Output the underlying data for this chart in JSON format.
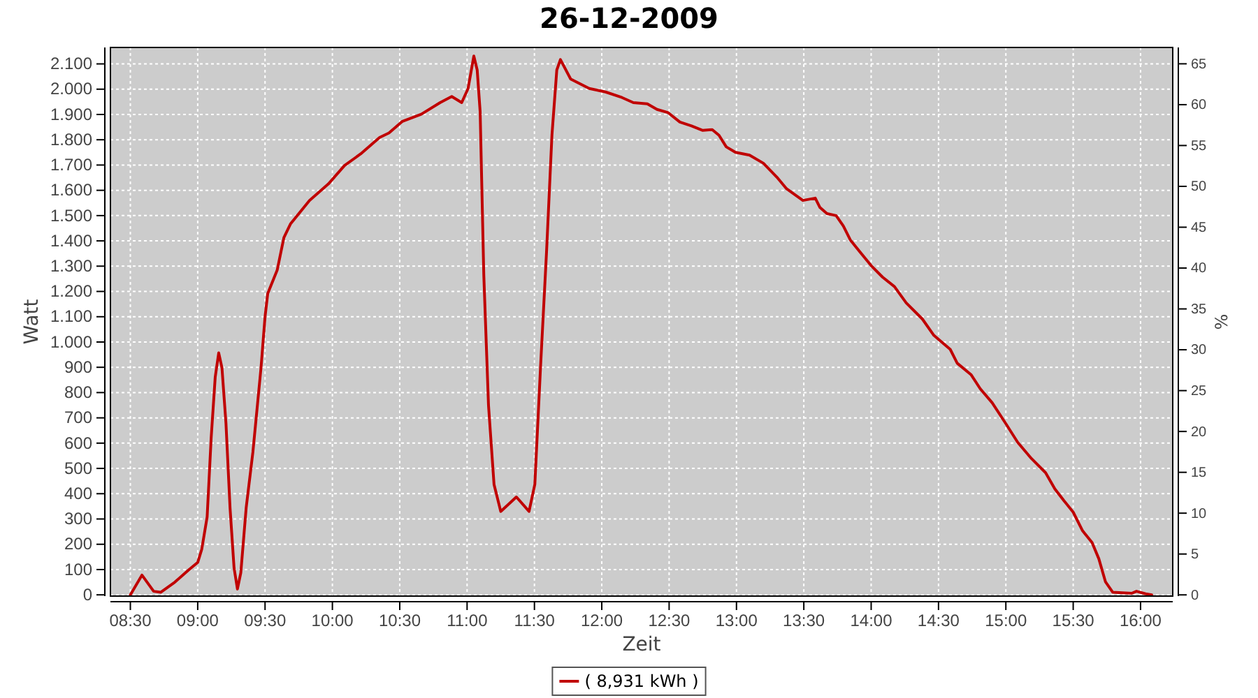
{
  "chart_data": {
    "type": "line",
    "title": "26-12-2009",
    "xlabel": "Zeit",
    "ylabel": "Watt",
    "y2label": "%",
    "xlim": [
      8.352,
      16.239
    ],
    "xticks": [
      {
        "value": 8.5,
        "label": "08:30"
      },
      {
        "value": 9,
        "label": "09:00"
      },
      {
        "value": 9.5,
        "label": "09:30"
      },
      {
        "value": 10,
        "label": "10:00"
      },
      {
        "value": 10.5,
        "label": "10:30"
      },
      {
        "value": 11,
        "label": "11:00"
      },
      {
        "value": 11.5,
        "label": "11:30"
      },
      {
        "value": 12,
        "label": "12:00"
      },
      {
        "value": 12.5,
        "label": "12:30"
      },
      {
        "value": 13,
        "label": "13:00"
      },
      {
        "value": 13.5,
        "label": "13:30"
      },
      {
        "value": 14,
        "label": "14:00"
      },
      {
        "value": 14.5,
        "label": "14:30"
      },
      {
        "value": 15,
        "label": "15:00"
      },
      {
        "value": 15.5,
        "label": "15:30"
      },
      {
        "value": 16,
        "label": "16:00"
      }
    ],
    "ylim": [
      -5,
      2165
    ],
    "yticks": [
      0,
      100,
      200,
      300,
      400,
      500,
      600,
      700,
      800,
      900,
      {
        "value": 1000,
        "label": "1.000"
      },
      {
        "value": 1100,
        "label": "1.100"
      },
      {
        "value": 1200,
        "label": "1.200"
      },
      {
        "value": 1300,
        "label": "1.300"
      },
      {
        "value": 1400,
        "label": "1.400"
      },
      {
        "value": 1500,
        "label": "1.500"
      },
      {
        "value": 1600,
        "label": "1.600"
      },
      {
        "value": 1700,
        "label": "1.700"
      },
      {
        "value": 1800,
        "label": "1.800"
      },
      {
        "value": 1900,
        "label": "1.900"
      },
      {
        "value": 2000,
        "label": "2.000"
      },
      {
        "value": 2100,
        "label": "2.100"
      }
    ],
    "y2lim": [
      -0.15,
      67.0
    ],
    "y2ticks": [
      0,
      5,
      10,
      15,
      20,
      25,
      30,
      35,
      40,
      45,
      50,
      55,
      60,
      65
    ],
    "grid": true,
    "legend": "bottom",
    "line_style": "solid",
    "marker": "none",
    "series": [
      {
        "name": "( 8,931 kWh )",
        "color": "#c00000",
        "x": [
          8.5,
          8.586,
          8.673,
          8.725,
          8.83,
          8.93,
          9.0,
          9.03,
          9.07,
          9.1,
          9.13,
          9.156,
          9.18,
          9.21,
          9.24,
          9.27,
          9.295,
          9.32,
          9.36,
          9.41,
          9.47,
          9.5,
          9.52,
          9.59,
          9.64,
          9.69,
          9.83,
          9.97,
          10.09,
          10.21,
          10.35,
          10.42,
          10.52,
          10.66,
          10.8,
          10.886,
          10.96,
          11.007,
          11.05,
          11.075,
          11.097,
          11.124,
          11.159,
          11.2,
          11.25,
          11.366,
          11.46,
          11.503,
          11.545,
          11.59,
          11.63,
          11.666,
          11.693,
          11.769,
          11.907,
          12.028,
          12.15,
          12.234,
          12.338,
          12.41,
          12.493,
          12.58,
          12.666,
          12.75,
          12.82,
          12.87,
          12.924,
          12.993,
          13.097,
          13.2,
          13.3,
          13.372,
          13.493,
          13.585,
          13.62,
          13.672,
          13.74,
          13.793,
          13.845,
          13.914,
          14.0,
          14.086,
          14.173,
          14.26,
          14.38,
          14.466,
          14.587,
          14.639,
          14.743,
          14.81,
          14.898,
          15.0,
          15.088,
          15.19,
          15.295,
          15.364,
          15.43,
          15.5,
          15.57,
          15.64,
          15.69,
          15.74,
          15.794,
          15.934,
          15.97,
          16.038,
          16.083
        ],
        "values": [
          0,
          78,
          14,
          10,
          50,
          97,
          128,
          180,
          308,
          621,
          861,
          957,
          898,
          677,
          345,
          106,
          23,
          87,
          345,
          566,
          898,
          1100,
          1192,
          1284,
          1413,
          1468,
          1560,
          1625,
          1698,
          1744,
          1809,
          1827,
          1873,
          1901,
          1947,
          1971,
          1947,
          2002,
          2131,
          2076,
          1911,
          1266,
          750,
          437,
          330,
          387,
          330,
          437,
          898,
          1358,
          1818,
          2076,
          2117,
          2040,
          2003,
          1989,
          1967,
          1947,
          1942,
          1920,
          1907,
          1870,
          1855,
          1837,
          1840,
          1818,
          1772,
          1750,
          1739,
          1707,
          1652,
          1606,
          1560,
          1569,
          1532,
          1508,
          1500,
          1459,
          1404,
          1358,
          1302,
          1256,
          1219,
          1155,
          1091,
          1026,
          971,
          916,
          870,
          815,
          760,
          677,
          603,
          539,
          483,
          419,
          373,
          327,
          253,
          207,
          143,
          51,
          10,
          6,
          14,
          4,
          0
        ]
      }
    ]
  }
}
